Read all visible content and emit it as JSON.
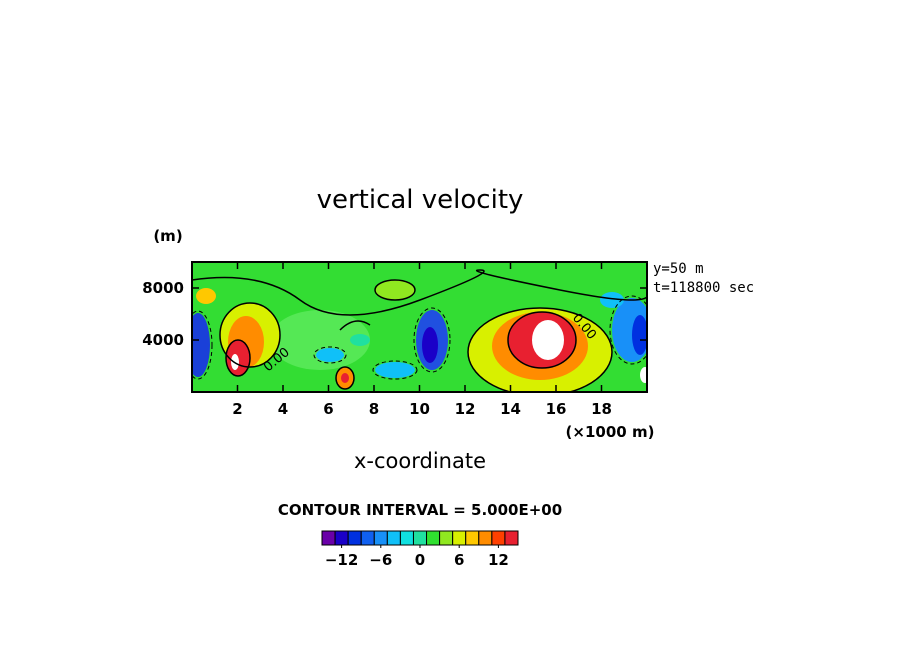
{
  "chart_data": {
    "type": "contour",
    "title": "vertical velocity",
    "x_label": "x-coordinate",
    "x_unit": "(×1000 m)",
    "y_unit": "(m)",
    "annotations": [
      "y=50 m",
      "t=118800 sec"
    ],
    "contour_interval_label": "CONTOUR INTERVAL = 5.000E+00",
    "contour_label": "0.00",
    "xlim": [
      0,
      20
    ],
    "xticks": [
      2,
      4,
      6,
      8,
      10,
      12,
      14,
      16,
      18
    ],
    "ylim": [
      0,
      10000
    ],
    "yticks": [
      4000,
      8000
    ],
    "colorbar": {
      "bounds": [
        -15,
        -13,
        -11,
        -9,
        -7,
        -5,
        -3,
        -1,
        1,
        3,
        5,
        7,
        9,
        11,
        13,
        15
      ],
      "colors": [
        "#6a00a8",
        "#1a00c8",
        "#0030e0",
        "#1060f0",
        "#1890f8",
        "#10c0f8",
        "#10e0e0",
        "#20e0a0",
        "#30e030",
        "#90e820",
        "#d8f000",
        "#ffc800",
        "#ff8c00",
        "#ff4000",
        "#e82030"
      ],
      "ticks": [
        {
          "value": -12,
          "label": "−12"
        },
        {
          "value": -6,
          "label": "−6"
        },
        0,
        6,
        12
      ]
    }
  }
}
